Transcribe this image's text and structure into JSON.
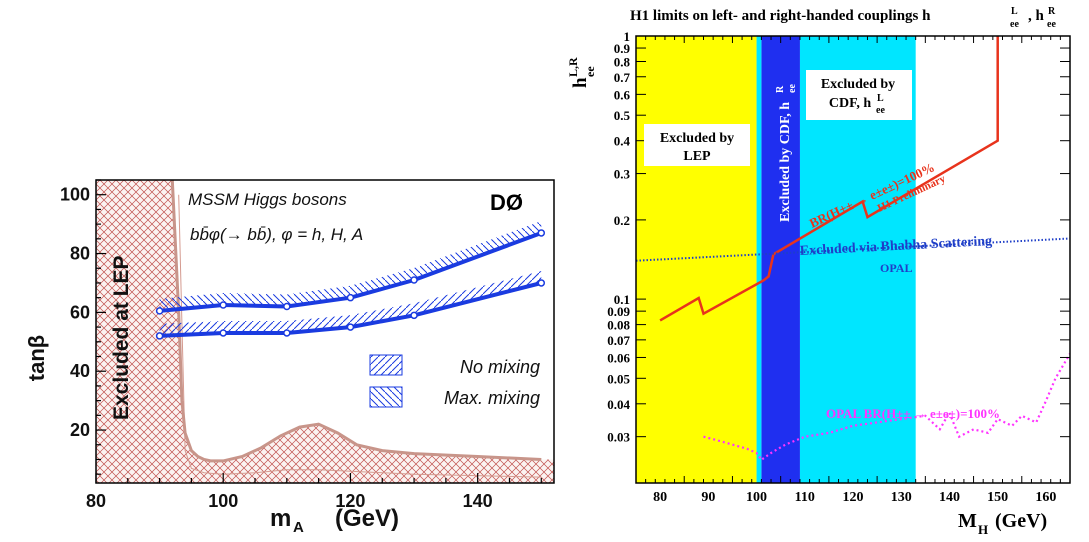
{
  "chart_data": [
    {
      "type": "line",
      "title": "",
      "annotations": {
        "experiment": "DØ",
        "header_line1": "MSSM Higgs bosons",
        "header_line2": "bb̄φ(→ bb̄), φ = h, H, A",
        "excluded_region": "Excluded at LEP"
      },
      "xlabel": "m",
      "xlabel_sub": "A",
      "xlabel_unit": "(GeV)",
      "ylabel": "tanβ",
      "xlim": [
        80,
        152
      ],
      "ylim": [
        2,
        105
      ],
      "xticks": [
        80,
        100,
        120,
        140
      ],
      "yticks": [
        20,
        40,
        60,
        80,
        100
      ],
      "legend": [
        "No mixing",
        "Max. mixing"
      ],
      "series": [
        {
          "name": "No mixing",
          "x": [
            90,
            100,
            110,
            120,
            130,
            150
          ],
          "y": [
            52,
            53,
            53,
            55,
            59,
            70
          ]
        },
        {
          "name": "Max. mixing",
          "x": [
            90,
            100,
            110,
            120,
            130,
            150
          ],
          "y": [
            60.5,
            62.5,
            62,
            65,
            71,
            87
          ]
        }
      ],
      "lep_boundary": {
        "x": [
          92,
          93,
          93.5,
          94,
          95,
          96,
          97,
          98,
          100,
          103,
          106,
          109,
          112,
          115,
          118,
          121,
          125,
          130,
          140,
          150
        ],
        "y": [
          105,
          60,
          30,
          19,
          13,
          11,
          10,
          9.5,
          9.5,
          11,
          14,
          18,
          21,
          22,
          19,
          15,
          13,
          12,
          11,
          10
        ]
      },
      "lep_inner": {
        "x": [
          93,
          94,
          95,
          97,
          100,
          105,
          110,
          115,
          120,
          130,
          150
        ],
        "y": [
          100,
          13,
          7,
          5.5,
          5,
          5.5,
          6.5,
          6.5,
          6,
          5,
          4
        ]
      },
      "colors": {
        "curve": "#1a3be0",
        "lep": "#c8958a",
        "hatch": "#c0504d"
      }
    },
    {
      "type": "line",
      "title": "H1 limits on left- and right-handed couplings h",
      "title_L": "L",
      "title_R": "R",
      "title_ee": "ee",
      "xlabel": "M",
      "xlabel_sub": "H",
      "xlabel_unit": "(GeV)",
      "ylabel": "h",
      "ylabel_sup": "L,R",
      "ylabel_sub": "ee",
      "xlim": [
        75,
        165
      ],
      "ylim": [
        0.02,
        1
      ],
      "yscale": "log",
      "xticks": [
        80,
        90,
        100,
        110,
        120,
        130,
        140,
        150,
        160
      ],
      "yticks": [
        0.03,
        0.04,
        0.05,
        0.06,
        0.07,
        0.08,
        0.09,
        0.1,
        0.2,
        0.3,
        0.4,
        0.5,
        0.6,
        0.7,
        0.8,
        0.9,
        1
      ],
      "ytick_labels": [
        "0.03",
        "0.04",
        "0.05",
        "0.06",
        "0.07",
        "0.08",
        "0.09",
        "0.1",
        "0.2",
        "0.3",
        "0.4",
        "0.5",
        "0.6",
        "0.7",
        "0.8",
        "0.9",
        "1"
      ],
      "bands": [
        {
          "name": "Excluded by LEP",
          "x0": 75,
          "x1": 100,
          "color": "#ffff00",
          "label": [
            "Excluded by",
            "LEP"
          ]
        },
        {
          "name": "Excluded by CDF, hR",
          "x0": 101,
          "x1": 109,
          "color": "#1f2ff0",
          "label": [
            "Excluded by CDF, h",
            "R",
            "ee"
          ]
        },
        {
          "name": "Excluded by CDF, hL",
          "x0": 100,
          "x1": 101,
          "color": "#00e6ff",
          "label": []
        },
        {
          "name": "Excluded by CDF, hL",
          "x0": 109,
          "x1": 133,
          "color": "#00e6ff",
          "label": [
            "Excluded by",
            "CDF, h",
            "L",
            "ee"
          ]
        }
      ],
      "series": [
        {
          "name": "BR(H±± → e±e±)=100% H1 Preliminary",
          "color": "#e8331c",
          "x": [
            80,
            88,
            89,
            101.5,
            102.5,
            103.5,
            122,
            123,
            150,
            150
          ],
          "y": [
            0.083,
            0.101,
            0.088,
            0.118,
            0.122,
            0.148,
            0.235,
            0.205,
            0.4,
            1.0
          ]
        },
        {
          "name": "Excluded via Bhabha Scattering OPAL",
          "color": "#1f3fc8",
          "x": [
            75,
            165
          ],
          "y": [
            0.14,
            0.17
          ]
        },
        {
          "name": "OPAL BR(H±± → e±e±)=100%",
          "color": "#ff33ff",
          "x": [
            89,
            92,
            95,
            98,
            100,
            101,
            103,
            106,
            110,
            115,
            120,
            125,
            130,
            135,
            138,
            140,
            142,
            145,
            148,
            150,
            153,
            155,
            158,
            160,
            162,
            165
          ],
          "y": [
            0.03,
            0.029,
            0.028,
            0.027,
            0.026,
            0.0245,
            0.026,
            0.028,
            0.03,
            0.031,
            0.033,
            0.034,
            0.035,
            0.036,
            0.032,
            0.037,
            0.03,
            0.032,
            0.031,
            0.035,
            0.033,
            0.036,
            0.034,
            0.041,
            0.05,
            0.062
          ]
        }
      ],
      "labels": {
        "h1_curve": [
          "BR(H±± → e±e±)=100%",
          "H1 Preliminary"
        ],
        "bhabha": [
          "Excluded via Bhabha Scattering",
          "OPAL"
        ],
        "opal": "OPAL BR(H±± → e±e±)=100%"
      }
    }
  ]
}
